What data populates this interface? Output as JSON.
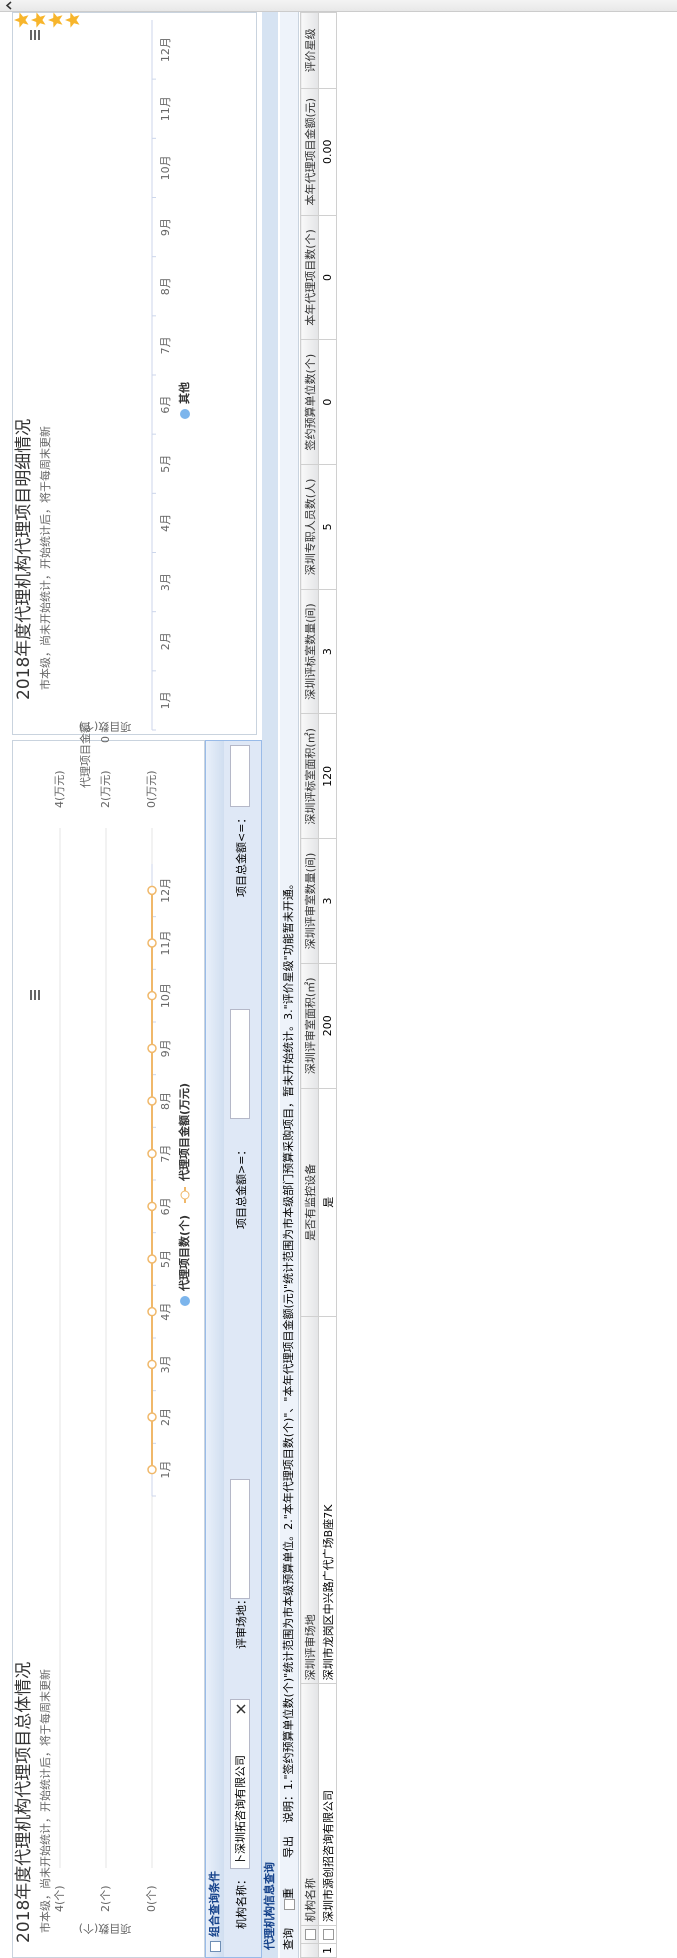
{
  "chart_data": [
    {
      "type": "bar",
      "title": "2018年度代理机构代理项目总体情况",
      "subtitle": "市本级，尚未开始统计，开始统计后，将于每周末更新",
      "ylabel": "项目数(个)",
      "y2label": "代理项目金额",
      "categories": [
        "1月",
        "2月",
        "3月",
        "4月",
        "5月",
        "6月",
        "7月",
        "8月",
        "9月",
        "10月",
        "11月",
        "12月"
      ],
      "series": [
        {
          "name": "代理项目数(个)",
          "color": "#7cb5ec",
          "values": [
            0,
            0,
            0,
            0,
            0,
            0,
            0,
            0,
            0,
            0,
            0,
            0
          ]
        },
        {
          "name": "代理项目金额(万元)",
          "type": "line",
          "axis": "y2",
          "color": "#f0b86a",
          "values": [
            0,
            0,
            0,
            0,
            0,
            0,
            0,
            0,
            0,
            0,
            0,
            0
          ]
        }
      ],
      "ylim": [
        0,
        4
      ],
      "yticks": [
        {
          "value": 0,
          "label": "0(个)"
        },
        {
          "value": 2,
          "label": "2(个)"
        },
        {
          "value": 4,
          "label": "4(个)"
        }
      ],
      "y2lim": [
        0,
        4
      ],
      "y2ticks": [
        {
          "value": 0,
          "label": "0(万元)"
        },
        {
          "value": 2,
          "label": "2(万元)"
        },
        {
          "value": 4,
          "label": "4(万元)"
        }
      ],
      "grid": true,
      "legend": "bottom"
    },
    {
      "type": "bar",
      "title": "2018年度代理机构代理项目明细情况",
      "subtitle": "市本级，尚未开始统计，开始统计后，将于每周末更新",
      "ylabel": "项目数(个)",
      "categories": [
        "1月",
        "2月",
        "3月",
        "4月",
        "5月",
        "6月",
        "7月",
        "8月",
        "9月",
        "10月",
        "11月",
        "12月"
      ],
      "series": [
        {
          "name": "其他",
          "color": "#7cb5ec",
          "values": [
            0,
            0,
            0,
            0,
            0,
            0,
            0,
            0,
            0,
            0,
            0,
            0
          ]
        }
      ],
      "ylim": [
        -1,
        1
      ],
      "yticks": [
        0
      ],
      "grid": false,
      "legend": "bottom"
    }
  ],
  "query": {
    "title": "组合查询条件",
    "fields": [
      {
        "label": "机构名称：",
        "value": "卜深圳拓咨询有限公司"
      },
      {
        "label": "评审场地："
      },
      {
        "label": "项目总金额>=："
      },
      {
        "label": "项目总金额<=："
      }
    ]
  },
  "info": {
    "title": "代理机构信息查询",
    "buttons": [
      "查询",
      "重置",
      "导出"
    ],
    "note": "说明：1.\"签约预算单位数(个)\"统计范围为市本级预算单位。2.\"本年代理项目数(个)\"、\"本年代理项目金额(元)\"统计范围为市本级部门预算采购项目，暂未开始统计。3.\"评价星级\"功能暂未开通。",
    "columns": [
      "机构名称",
      "深圳评审场地",
      "是否有监控设备",
      "深圳评审室面积(㎡)",
      "深圳评审室数量(间)",
      "深圳评标室面积(㎡)",
      "深圳评标室数量(间)",
      "深圳专职人员数(人)",
      "签约预算单位数(个)",
      "本年代理项目数(个)",
      "本年代理项目金额(元)",
      "评价星级"
    ],
    "rows": [
      [
        "1",
        "深圳市源创招咨询有限公司",
        "深圳市龙岗区中兴路广代广场B座7K",
        "是",
        "200",
        "3",
        "120",
        "3",
        "5",
        "0",
        "0",
        "0.00"
      ]
    ],
    "rating": 4
  }
}
